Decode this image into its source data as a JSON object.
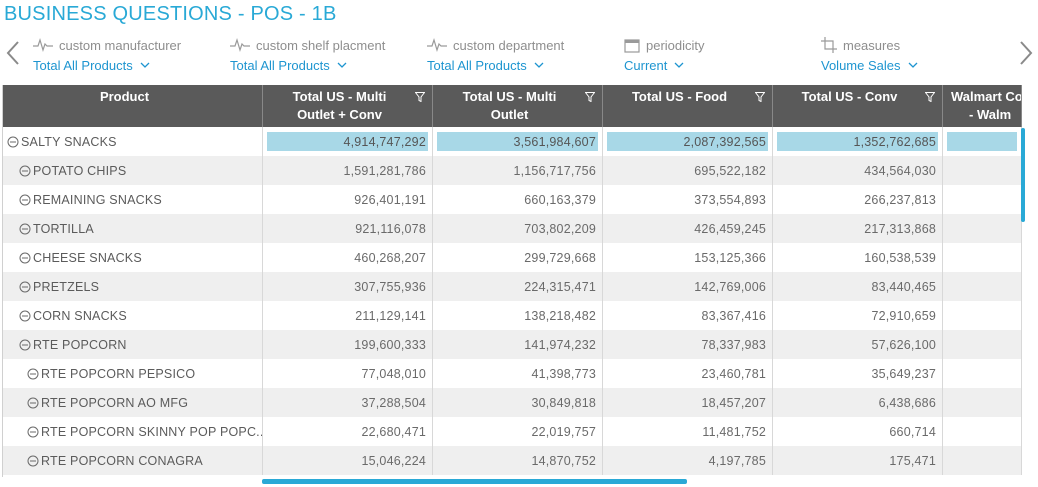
{
  "page": {
    "title": "BUSINESS QUESTIONS - POS - 1B"
  },
  "filters": [
    {
      "label": "custom manufacturer",
      "value": "Total All Products",
      "icon": "pulse-icon"
    },
    {
      "label": "custom shelf placment",
      "value": "Total All Products",
      "icon": "pulse-icon"
    },
    {
      "label": "custom department",
      "value": "Total All Products",
      "icon": "pulse-icon"
    },
    {
      "label": "periodicity",
      "value": "Current",
      "icon": "calendar-icon"
    },
    {
      "label": "measures",
      "value": "Volume Sales",
      "icon": "crop-icon"
    }
  ],
  "table": {
    "headers": [
      {
        "line1": "Product",
        "line2": ""
      },
      {
        "line1": "Total US - Multi",
        "line2": "Outlet + Conv"
      },
      {
        "line1": "Total US - Multi",
        "line2": "Outlet"
      },
      {
        "line1": "Total US - Food",
        "line2": ""
      },
      {
        "line1": "Total US - Conv",
        "line2": ""
      },
      {
        "line1": "Walmart Cor",
        "line2": "- Walm"
      }
    ],
    "rows": [
      {
        "product": "SALTY SNACKS",
        "level": 0,
        "values": [
          "4,914,747,292",
          "3,561,984,607",
          "2,087,392,565",
          "1,352,762,685",
          ""
        ]
      },
      {
        "product": "POTATO CHIPS",
        "level": 1,
        "values": [
          "1,591,281,786",
          "1,156,717,756",
          "695,522,182",
          "434,564,030",
          ""
        ]
      },
      {
        "product": "REMAINING SNACKS",
        "level": 1,
        "values": [
          "926,401,191",
          "660,163,379",
          "373,554,893",
          "266,237,813",
          ""
        ]
      },
      {
        "product": "TORTILLA",
        "level": 1,
        "values": [
          "921,116,078",
          "703,802,209",
          "426,459,245",
          "217,313,868",
          ""
        ]
      },
      {
        "product": "CHEESE SNACKS",
        "level": 1,
        "values": [
          "460,268,207",
          "299,729,668",
          "153,125,366",
          "160,538,539",
          ""
        ]
      },
      {
        "product": "PRETZELS",
        "level": 1,
        "values": [
          "307,755,936",
          "224,315,471",
          "142,769,006",
          "83,440,465",
          ""
        ]
      },
      {
        "product": "CORN SNACKS",
        "level": 1,
        "values": [
          "211,129,141",
          "138,218,482",
          "83,367,416",
          "72,910,659",
          ""
        ]
      },
      {
        "product": "RTE POPCORN",
        "level": 1,
        "values": [
          "199,600,333",
          "141,974,232",
          "78,337,983",
          "57,626,100",
          ""
        ]
      },
      {
        "product": "RTE POPCORN PEPSICO",
        "level": 2,
        "values": [
          "77,048,010",
          "41,398,773",
          "23,460,781",
          "35,649,237",
          ""
        ]
      },
      {
        "product": "RTE POPCORN AO MFG",
        "level": 2,
        "values": [
          "37,288,504",
          "30,849,818",
          "18,457,207",
          "6,438,686",
          ""
        ]
      },
      {
        "product": "RTE POPCORN SKINNY POP POPC...",
        "level": 2,
        "values": [
          "22,680,471",
          "22,019,757",
          "11,481,752",
          "660,714",
          ""
        ]
      },
      {
        "product": "RTE POPCORN CONAGRA",
        "level": 2,
        "values": [
          "15,046,224",
          "14,870,752",
          "4,197,785",
          "175,471",
          ""
        ]
      }
    ]
  },
  "colors": {
    "accent": "#29a9d6",
    "header_bg": "#5a5a5a",
    "highlight": "#a8d8e7"
  }
}
